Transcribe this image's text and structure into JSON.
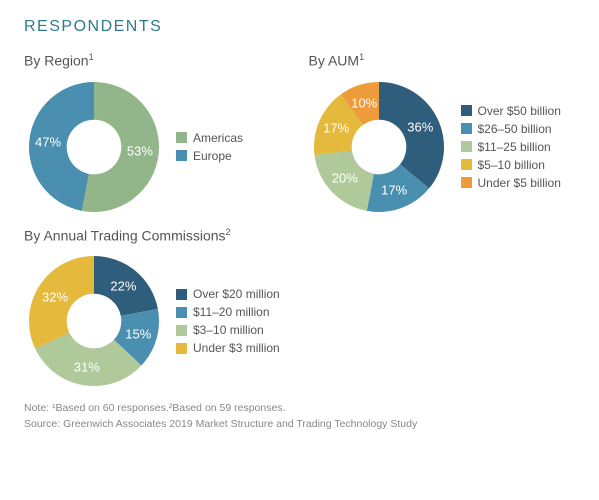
{
  "title": "RESPONDENTS",
  "palette": {
    "darkblue": "#2f5d7c",
    "midblue": "#4a8fb0",
    "teal": "#93b58a",
    "green": "#b0c99a",
    "gold": "#e4b93c",
    "orange": "#ee9b3b",
    "text": "#555555",
    "titlecolor": "#2e7a8f"
  },
  "charts": {
    "region": {
      "title_html": "By Region",
      "super": "1",
      "type": "donut",
      "inner_ratio": 0.42,
      "slices": [
        {
          "label": "Americas",
          "value": 53,
          "color": "#93b58a",
          "text": "53%"
        },
        {
          "label": "Europe",
          "value": 47,
          "color": "#4a8fb0",
          "text": "47%"
        }
      ]
    },
    "aum": {
      "title_html": "By AUM",
      "super": "1",
      "type": "donut",
      "inner_ratio": 0.42,
      "slices": [
        {
          "label": "Over $50 billion",
          "value": 36,
          "color": "#2f5d7c",
          "text": "36%"
        },
        {
          "label": "$26–50 billion",
          "value": 17,
          "color": "#4a8fb0",
          "text": "17%"
        },
        {
          "label": "$11–25 billion",
          "value": 20,
          "color": "#b0c99a",
          "text": "20%"
        },
        {
          "label": "$5–10 billion",
          "value": 17,
          "color": "#e4b93c",
          "text": "17%"
        },
        {
          "label": "Under $5 billion",
          "value": 10,
          "color": "#ee9b3b",
          "text": "10%"
        }
      ]
    },
    "commissions": {
      "title_html": "By Annual Trading Commissions",
      "super": "2",
      "type": "donut",
      "inner_ratio": 0.42,
      "slices": [
        {
          "label": "Over $20 million",
          "value": 22,
          "color": "#2f5d7c",
          "text": "22%"
        },
        {
          "label": "$11–20 million",
          "value": 15,
          "color": "#4a8fb0",
          "text": "15%"
        },
        {
          "label": "$3–10 million",
          "value": 31,
          "color": "#b0c99a",
          "text": "31%"
        },
        {
          "label": "Under $3 million",
          "value": 32,
          "color": "#e4b93c",
          "text": "32%"
        }
      ]
    }
  },
  "footnote_line1": "Note: ¹Based on 60 responses.²Based on 59 responses.",
  "footnote_line2": "Source: Greenwich Associates 2019 Market Structure and Trading Technology Study"
}
